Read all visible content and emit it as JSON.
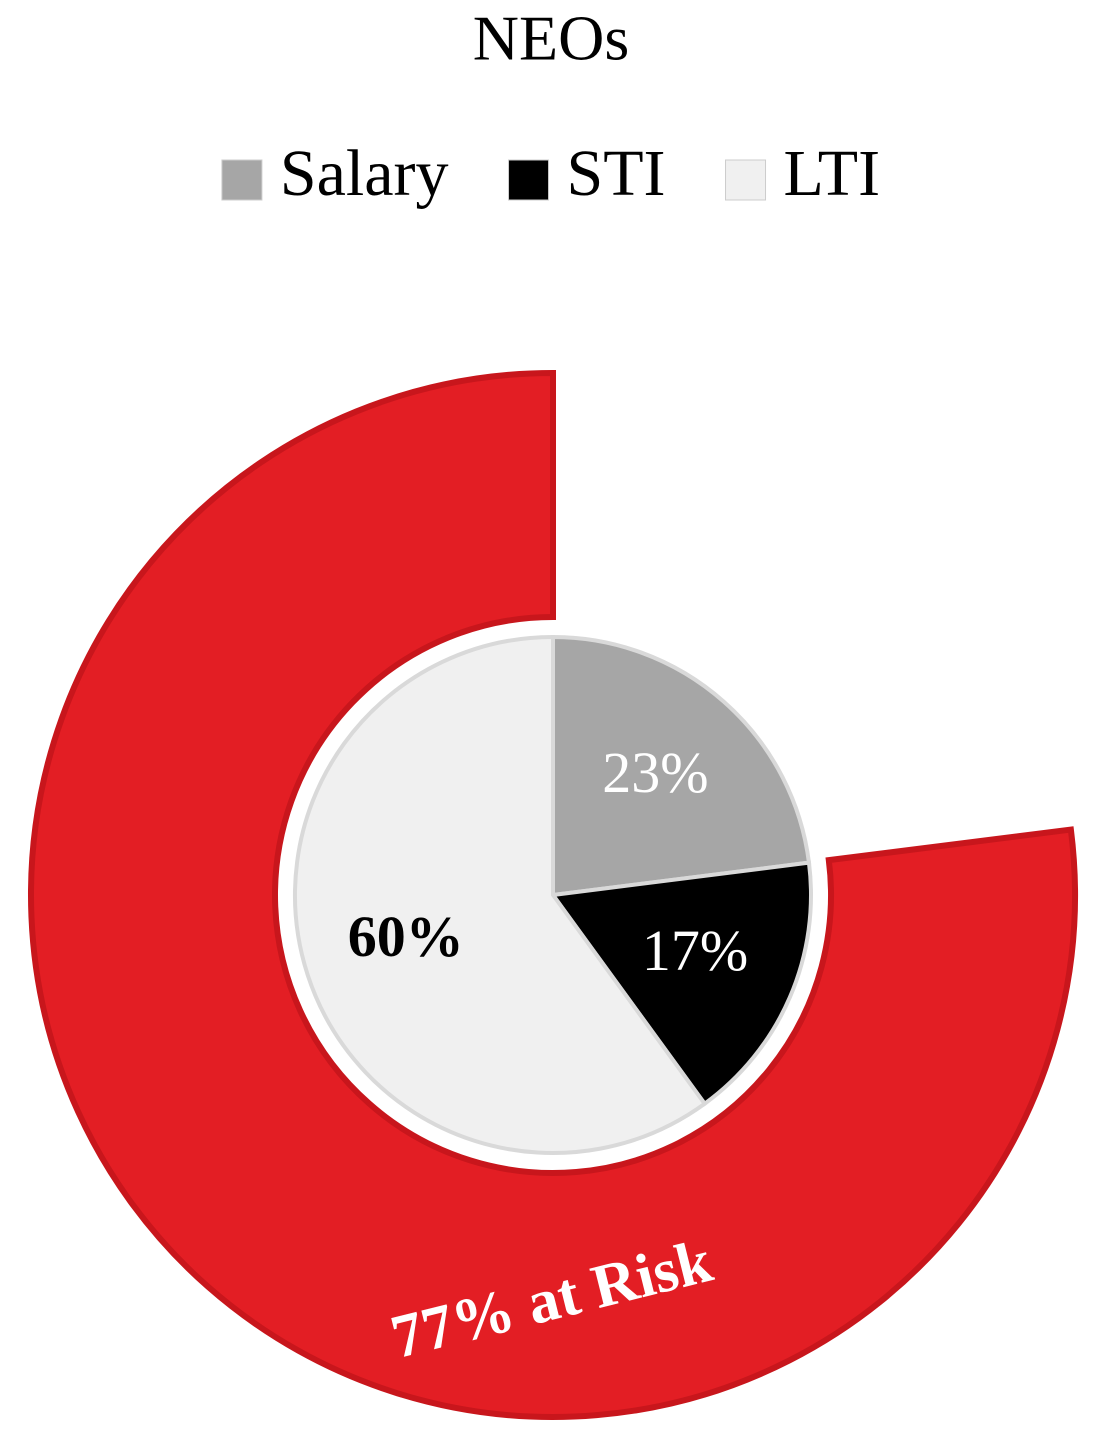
{
  "chart_data": {
    "type": "pie",
    "title": "NEOs",
    "categories": [
      "Salary",
      "STI",
      "LTI"
    ],
    "values": [
      23,
      17,
      60
    ],
    "value_labels": [
      "23%",
      "17%",
      "60%"
    ],
    "colors": [
      "#a6a6a6",
      "#000000",
      "#f0f0f0"
    ],
    "label_colors": [
      "#ffffff",
      "#ffffff",
      "#000000"
    ],
    "ring": {
      "label": "77% at Risk",
      "value": 77,
      "color": "#e31e24"
    }
  }
}
